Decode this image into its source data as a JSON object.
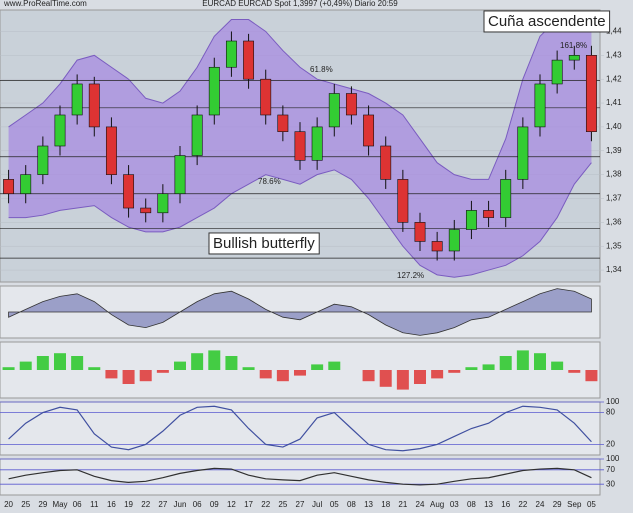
{
  "source": "www.ProRealTime.com",
  "chart_data": [
    {
      "type": "candlestick",
      "title": "EURCAD  EURCAD Spot  1,3997 (+0,49%)  Diario 20:59",
      "categories": [
        "20",
        "25",
        "29",
        "May",
        "06",
        "11",
        "16",
        "19",
        "22",
        "27",
        "Jun",
        "06",
        "09",
        "12",
        "17",
        "22",
        "25",
        "27",
        "Jul",
        "05",
        "08",
        "13",
        "18",
        "21",
        "24",
        "Aug",
        "03",
        "08",
        "13",
        "16",
        "22",
        "24",
        "29",
        "Sep",
        "05"
      ],
      "open": [
        1.378,
        1.372,
        1.38,
        1.392,
        1.405,
        1.418,
        1.4,
        1.38,
        1.366,
        1.364,
        1.372,
        1.388,
        1.405,
        1.425,
        1.436,
        1.42,
        1.405,
        1.398,
        1.386,
        1.4,
        1.414,
        1.405,
        1.392,
        1.378,
        1.36,
        1.352,
        1.348,
        1.357,
        1.365,
        1.362,
        1.378,
        1.4,
        1.418,
        1.428,
        1.43
      ],
      "high": [
        1.382,
        1.384,
        1.396,
        1.409,
        1.422,
        1.421,
        1.404,
        1.384,
        1.37,
        1.376,
        1.392,
        1.409,
        1.429,
        1.44,
        1.439,
        1.424,
        1.409,
        1.402,
        1.404,
        1.418,
        1.417,
        1.409,
        1.396,
        1.382,
        1.364,
        1.356,
        1.361,
        1.369,
        1.369,
        1.382,
        1.404,
        1.422,
        1.432,
        1.434,
        1.434
      ],
      "low": [
        1.368,
        1.368,
        1.376,
        1.388,
        1.401,
        1.396,
        1.376,
        1.362,
        1.36,
        1.36,
        1.368,
        1.384,
        1.401,
        1.421,
        1.416,
        1.401,
        1.394,
        1.382,
        1.382,
        1.396,
        1.401,
        1.388,
        1.374,
        1.356,
        1.348,
        1.344,
        1.344,
        1.353,
        1.358,
        1.358,
        1.374,
        1.396,
        1.414,
        1.424,
        1.394
      ],
      "close": [
        1.372,
        1.38,
        1.392,
        1.405,
        1.418,
        1.4,
        1.38,
        1.366,
        1.364,
        1.372,
        1.388,
        1.405,
        1.425,
        1.436,
        1.42,
        1.405,
        1.398,
        1.386,
        1.4,
        1.414,
        1.405,
        1.392,
        1.378,
        1.36,
        1.352,
        1.348,
        1.357,
        1.365,
        1.362,
        1.378,
        1.4,
        1.418,
        1.428,
        1.43,
        1.398
      ],
      "band_upper": [
        1.4,
        1.405,
        1.41,
        1.418,
        1.428,
        1.43,
        1.425,
        1.42,
        1.412,
        1.41,
        1.415,
        1.425,
        1.438,
        1.445,
        1.445,
        1.44,
        1.432,
        1.425,
        1.42,
        1.418,
        1.416,
        1.414,
        1.41,
        1.405,
        1.395,
        1.385,
        1.38,
        1.378,
        1.378,
        1.395,
        1.42,
        1.438,
        1.445,
        1.446,
        1.442
      ],
      "band_lower": [
        1.362,
        1.362,
        1.363,
        1.365,
        1.366,
        1.367,
        1.362,
        1.358,
        1.356,
        1.356,
        1.358,
        1.362,
        1.366,
        1.372,
        1.376,
        1.38,
        1.378,
        1.376,
        1.38,
        1.382,
        1.378,
        1.37,
        1.36,
        1.35,
        1.342,
        1.338,
        1.337,
        1.338,
        1.34,
        1.342,
        1.346,
        1.352,
        1.362,
        1.376,
        1.385
      ],
      "band_color": "#a78be0",
      "up_color": "#33cc33",
      "down_color": "#dd3333",
      "levels": [
        1.4195,
        1.408,
        1.3875,
        1.372,
        1.3575,
        1.345
      ],
      "ylim": [
        1.335,
        1.449
      ],
      "yticks": [
        {
          "value": 1.34,
          "label": "1,34"
        },
        {
          "value": 1.35,
          "label": "1,35"
        },
        {
          "value": 1.36,
          "label": "1,36"
        },
        {
          "value": 1.37,
          "label": "1,37"
        },
        {
          "value": 1.38,
          "label": "1,38"
        },
        {
          "value": 1.39,
          "label": "1,39"
        },
        {
          "value": 1.4,
          "label": "1,40"
        },
        {
          "value": 1.41,
          "label": "1,41"
        },
        {
          "value": 1.42,
          "label": "1,42"
        },
        {
          "value": 1.43,
          "label": "1,43"
        },
        {
          "value": 1.44,
          "label": "1,44"
        }
      ],
      "annotations": [
        "Cuña ascendente",
        "Bullish butterfly",
        "61.8%",
        "78.6%",
        "127.2%",
        "161.8%"
      ]
    },
    {
      "type": "area",
      "color": "#6a6fb0",
      "ylim": [
        -1,
        1
      ],
      "values": [
        -0.2,
        0.1,
        0.4,
        0.6,
        0.7,
        0.4,
        -0.1,
        -0.5,
        -0.6,
        -0.4,
        0,
        0.4,
        0.7,
        0.8,
        0.5,
        0.1,
        -0.2,
        -0.3,
        0,
        0.3,
        0.2,
        -0.1,
        -0.5,
        -0.8,
        -0.9,
        -0.8,
        -0.6,
        -0.3,
        -0.2,
        0.1,
        0.4,
        0.7,
        0.9,
        0.8,
        0.5
      ]
    },
    {
      "type": "bar",
      "pos_color": "#44cc44",
      "neg_color": "#e05050",
      "ylim": [
        -1,
        1
      ],
      "values": [
        0.1,
        0.3,
        0.5,
        0.6,
        0.5,
        0.1,
        -0.3,
        -0.5,
        -0.4,
        -0.1,
        0.3,
        0.6,
        0.7,
        0.5,
        0.1,
        -0.3,
        -0.4,
        -0.2,
        0.2,
        0.3,
        0,
        -0.4,
        -0.6,
        -0.7,
        -0.5,
        -0.3,
        -0.1,
        0.1,
        0.2,
        0.5,
        0.7,
        0.6,
        0.3,
        -0.1,
        -0.4
      ]
    },
    {
      "type": "line",
      "color": "#4050a0",
      "ylim": [
        0,
        100
      ],
      "yticks": [
        20,
        80,
        100
      ],
      "values": [
        30,
        60,
        80,
        90,
        85,
        40,
        15,
        10,
        20,
        45,
        75,
        90,
        92,
        85,
        50,
        20,
        15,
        30,
        70,
        80,
        50,
        20,
        10,
        8,
        12,
        20,
        35,
        50,
        60,
        80,
        92,
        90,
        85,
        60,
        25
      ]
    },
    {
      "type": "line",
      "color": "#303030",
      "ylim": [
        0,
        100
      ],
      "yticks": [
        30,
        70,
        100
      ],
      "values": [
        45,
        55,
        62,
        68,
        70,
        52,
        40,
        35,
        38,
        48,
        60,
        68,
        74,
        72,
        55,
        45,
        42,
        40,
        55,
        62,
        52,
        42,
        35,
        30,
        28,
        30,
        38,
        45,
        48,
        58,
        68,
        72,
        74,
        70,
        48
      ]
    }
  ]
}
